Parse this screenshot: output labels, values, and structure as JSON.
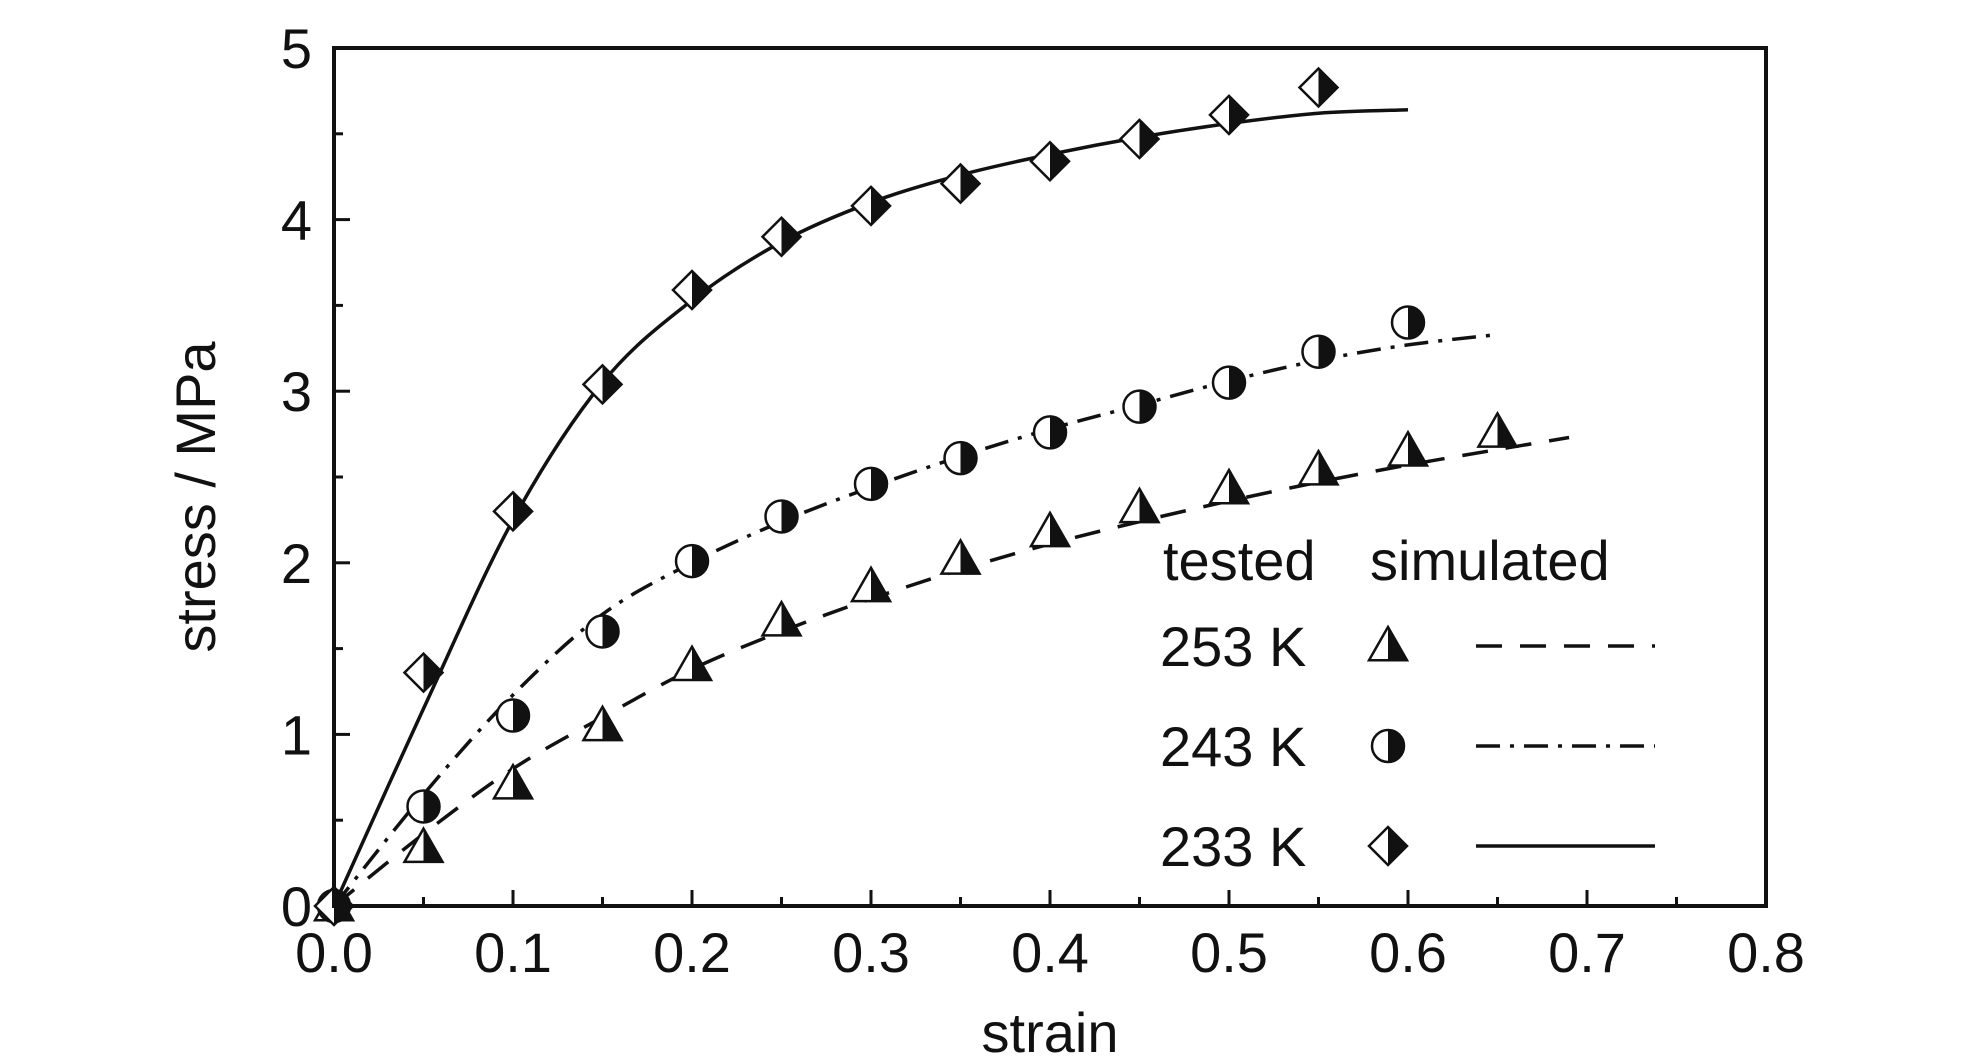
{
  "chart_data": {
    "type": "scatter",
    "xlabel": "strain",
    "ylabel": "stress / MPa",
    "xlim": [
      0.0,
      0.8
    ],
    "ylim": [
      0,
      5
    ],
    "xticks": [
      "0.0",
      "0.1",
      "0.2",
      "0.3",
      "0.4",
      "0.5",
      "0.6",
      "0.7",
      "0.8"
    ],
    "yticks": [
      "0",
      "1",
      "2",
      "3",
      "4",
      "5"
    ],
    "grid": false,
    "legend": {
      "placement": "bottom-right",
      "header_tested": "tested",
      "header_simulated": "simulated"
    },
    "series": [
      {
        "name": "253 K",
        "marker": "triangle-half",
        "line_style": "dashed",
        "tested": {
          "x": [
            0.0,
            0.05,
            0.1,
            0.15,
            0.2,
            0.25,
            0.3,
            0.35,
            0.4,
            0.45,
            0.5,
            0.55,
            0.6,
            0.65
          ],
          "y": [
            0.0,
            0.34,
            0.71,
            1.05,
            1.4,
            1.66,
            1.86,
            2.02,
            2.18,
            2.32,
            2.43,
            2.54,
            2.65,
            2.76
          ]
        },
        "simulated": {
          "x": [
            0.0,
            0.05,
            0.1,
            0.15,
            0.2,
            0.25,
            0.3,
            0.35,
            0.4,
            0.45,
            0.5,
            0.55,
            0.6,
            0.65,
            0.69
          ],
          "y": [
            0.0,
            0.42,
            0.8,
            1.1,
            1.38,
            1.6,
            1.79,
            1.96,
            2.11,
            2.24,
            2.36,
            2.47,
            2.57,
            2.66,
            2.73
          ]
        }
      },
      {
        "name": "243 K",
        "marker": "circle-half",
        "line_style": "dash-dot",
        "tested": {
          "x": [
            0.0,
            0.05,
            0.1,
            0.15,
            0.2,
            0.25,
            0.3,
            0.35,
            0.4,
            0.45,
            0.5,
            0.55,
            0.6
          ],
          "y": [
            0.0,
            0.58,
            1.11,
            1.6,
            2.01,
            2.27,
            2.46,
            2.61,
            2.76,
            2.91,
            3.05,
            3.23,
            3.4
          ]
        },
        "simulated": {
          "x": [
            0.0,
            0.05,
            0.1,
            0.15,
            0.2,
            0.25,
            0.3,
            0.35,
            0.4,
            0.45,
            0.5,
            0.55,
            0.6,
            0.65
          ],
          "y": [
            0.0,
            0.65,
            1.23,
            1.7,
            2.0,
            2.24,
            2.44,
            2.62,
            2.78,
            2.92,
            3.06,
            3.18,
            3.27,
            3.33
          ]
        }
      },
      {
        "name": "233 K",
        "marker": "diamond-half",
        "line_style": "solid",
        "tested": {
          "x": [
            0.0,
            0.05,
            0.1,
            0.15,
            0.2,
            0.25,
            0.3,
            0.35,
            0.4,
            0.45,
            0.5,
            0.55
          ],
          "y": [
            0.0,
            1.36,
            2.3,
            3.04,
            3.59,
            3.9,
            4.08,
            4.21,
            4.34,
            4.47,
            4.61,
            4.77
          ]
        },
        "simulated": {
          "x": [
            0.0,
            0.05,
            0.1,
            0.15,
            0.2,
            0.25,
            0.3,
            0.35,
            0.4,
            0.45,
            0.5,
            0.55,
            0.6
          ],
          "y": [
            0.0,
            1.15,
            2.25,
            3.05,
            3.53,
            3.87,
            4.1,
            4.26,
            4.38,
            4.48,
            4.56,
            4.62,
            4.64
          ]
        }
      }
    ]
  }
}
